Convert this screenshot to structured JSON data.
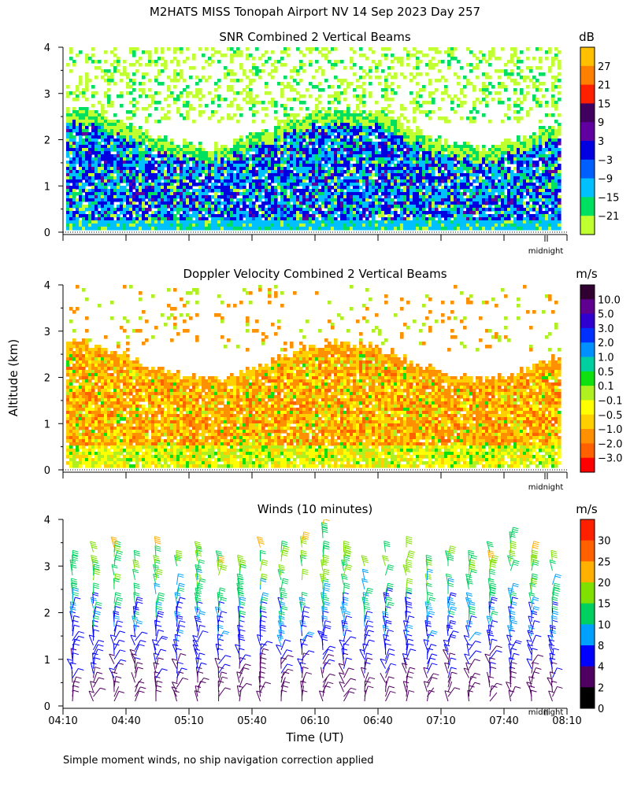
{
  "title": "M2HATS MISS Tonopah Airport NV  14 Sep 2023 Day 257",
  "ylabel": "Altitude (km)",
  "xlabel": "Time (UT)",
  "footnote": "Simple moment winds, no ship navigation correction applied",
  "midnight_label": "midnight",
  "x_ticks": [
    "04:10",
    "04:40",
    "05:10",
    "05:40",
    "06:10",
    "06:40",
    "07:10",
    "07:40",
    "08:10"
  ],
  "y_ticks": [
    "0",
    "1",
    "2",
    "3",
    "4"
  ],
  "chart_data": [
    {
      "type": "heatmap",
      "title": "SNR Combined 2 Vertical Beams",
      "unit": "dB",
      "ylim": [
        0,
        4
      ],
      "xrange": [
        "04:10",
        "08:10"
      ],
      "colorbar_labels": [
        "27",
        "21",
        "15",
        "9",
        "3",
        "−3",
        "−9",
        "−15",
        "−21"
      ],
      "colorbar_colors": [
        "#ffc000",
        "#ff8000",
        "#ff2000",
        "#400060",
        "#6000a0",
        "#0000e0",
        "#0060ff",
        "#00c0ff",
        "#00e060",
        "#c0ff30"
      ],
      "layers": [
        {
          "alt_from": 0.15,
          "alt_to": 0.4,
          "level": "-9"
        },
        {
          "alt_from": 0.4,
          "alt_to": 1.9,
          "level": "-3"
        },
        {
          "alt_from": 1.9,
          "alt_to": 2.3,
          "level": "-15"
        },
        {
          "alt_from": 2.3,
          "alt_to": 4.0,
          "level": "-21 (sparse)"
        }
      ]
    },
    {
      "type": "heatmap",
      "title": "Doppler Velocity Combined 2 Vertical Beams",
      "unit": "m/s",
      "ylim": [
        0,
        4
      ],
      "xrange": [
        "04:10",
        "08:10"
      ],
      "colorbar_labels": [
        "10.0",
        "5.0",
        "3.0",
        "2.0",
        "1.0",
        "0.5",
        "0.1",
        "−0.1",
        "−0.5",
        "−1.0",
        "−2.0",
        "−3.0"
      ],
      "colorbar_colors": [
        "#300030",
        "#600090",
        "#3000d0",
        "#0030ff",
        "#0090ff",
        "#00d0a0",
        "#10e010",
        "#b0f020",
        "#ffff00",
        "#ffd000",
        "#ff9000",
        "#ff6000",
        "#ff0000"
      ],
      "layers": [
        {
          "alt_from": 0.15,
          "alt_to": 0.6,
          "level": "-0.1 to 0.1"
        },
        {
          "alt_from": 0.6,
          "alt_to": 2.4,
          "level": "-1.0 to -0.5"
        },
        {
          "alt_from": 2.4,
          "alt_to": 4.0,
          "level": "-0.5 (sparse)"
        }
      ]
    },
    {
      "type": "barbs",
      "title": "Winds (10 minutes)",
      "unit": "m/s",
      "ylim": [
        0,
        4
      ],
      "xrange": [
        "04:10",
        "08:10"
      ],
      "interval_min": 10,
      "colorbar_labels": [
        "30",
        "25",
        "20",
        "15",
        "10",
        "8",
        "4",
        "2",
        "0"
      ],
      "colorbar_colors": [
        "#ff2000",
        "#ff6000",
        "#ffb000",
        "#80e000",
        "#00d060",
        "#00a0ff",
        "#0000ff",
        "#500060",
        "#000000"
      ],
      "speed_profile": [
        {
          "alt_km": 0.5,
          "speed": 3
        },
        {
          "alt_km": 1.0,
          "speed": 5
        },
        {
          "alt_km": 1.5,
          "speed": 7
        },
        {
          "alt_km": 2.0,
          "speed": 9
        },
        {
          "alt_km": 2.5,
          "speed": 12
        },
        {
          "alt_km": 3.0,
          "speed": 16
        },
        {
          "alt_km": 3.5,
          "speed": 18
        },
        {
          "alt_km": 4.0,
          "speed": 20
        }
      ]
    }
  ]
}
